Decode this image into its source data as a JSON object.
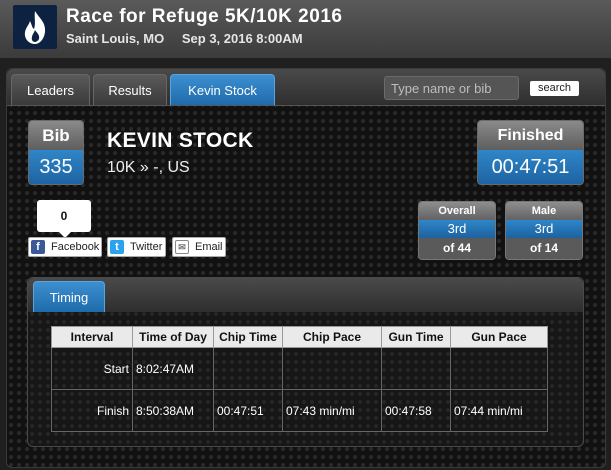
{
  "header": {
    "title": "Race for Refuge 5K/10K 2016",
    "location": "Saint Louis, MO",
    "date": "Sep 3, 2016 8:00AM"
  },
  "tabs": [
    {
      "label": "Leaders",
      "active": false
    },
    {
      "label": "Results",
      "active": false
    },
    {
      "label": "Kevin Stock",
      "active": true
    }
  ],
  "search": {
    "placeholder": "Type name or bib",
    "button_label": "search"
  },
  "runner": {
    "bib_label": "Bib",
    "bib": "335",
    "name": "KEVIN STOCK",
    "race": "10K » -, US",
    "status_label": "Finished",
    "finish_time": "00:47:51"
  },
  "share": {
    "count": "0",
    "facebook": "Facebook",
    "twitter": "Twitter",
    "email": "Email"
  },
  "ranks": [
    {
      "label": "Overall",
      "place": "3rd",
      "of": "of 44"
    },
    {
      "label": "Male",
      "place": "3rd",
      "of": "of 14"
    }
  ],
  "timing": {
    "tab_label": "Timing",
    "columns": [
      "Interval",
      "Time of Day",
      "Chip Time",
      "Chip Pace",
      "Gun Time",
      "Gun Pace"
    ],
    "rows": [
      [
        "Start",
        "8:02:47AM",
        "",
        "",
        "",
        ""
      ],
      [
        "Finish",
        "8:50:38AM",
        "00:47:51",
        "07:43 min/mi",
        "00:47:58",
        "07:44 min/mi"
      ]
    ]
  },
  "colors": {
    "accent": "#2576b9",
    "logo_bg": "#0d2240",
    "flame": "#ffffff"
  }
}
